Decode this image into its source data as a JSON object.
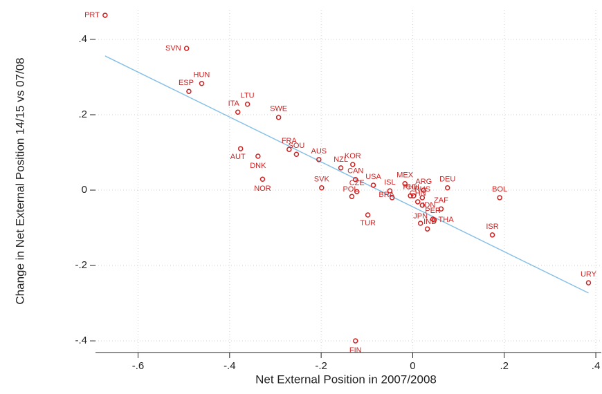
{
  "chart_data": {
    "type": "scatter",
    "x_label": "Net External Position in 2007/2008",
    "y_label": "Change in Net External Position 14/15 vs 07/08",
    "labels": [
      "PRT",
      "SVN",
      "HUN",
      "ESP",
      "LTU",
      "ITA",
      "SWE",
      "FRA",
      "SOU",
      "AUT",
      "DNK",
      "NOR",
      "AUS",
      "NZL",
      "KOR",
      "CAN",
      "SVK",
      "USA",
      "CZE",
      "POL",
      "TUR",
      "MEX",
      "FIN",
      "ISL",
      "BRA",
      "PHL",
      "ARG",
      "RUS",
      "COL",
      "CHN",
      "IDN",
      "ZAF",
      "PER",
      "THA",
      "JPN",
      "IND",
      "DEU",
      "BOL",
      "ISR",
      "URY"
    ],
    "x": [
      -0.672,
      -0.494,
      -0.461,
      -0.489,
      -0.361,
      -0.382,
      -0.293,
      -0.27,
      -0.254,
      -0.376,
      -0.338,
      -0.328,
      -0.205,
      -0.157,
      -0.131,
      -0.125,
      -0.199,
      -0.086,
      -0.122,
      -0.133,
      -0.098,
      -0.017,
      -0.125,
      -0.05,
      -0.045,
      -0.005,
      0.024,
      0.021,
      0.002,
      0.011,
      0.021,
      0.062,
      0.044,
      0.047,
      0.017,
      0.032,
      0.076,
      0.19,
      0.174,
      0.384
    ],
    "y": [
      0.464,
      0.376,
      0.283,
      0.262,
      0.228,
      0.207,
      0.193,
      0.108,
      0.095,
      0.11,
      0.09,
      0.029,
      0.081,
      0.059,
      0.068,
      0.028,
      0.006,
      0.013,
      -0.004,
      -0.017,
      -0.066,
      0.017,
      -0.4,
      -0.002,
      -0.02,
      -0.015,
      0.0,
      -0.02,
      -0.015,
      -0.031,
      -0.04,
      -0.05,
      -0.077,
      -0.079,
      -0.088,
      -0.103,
      0.006,
      -0.02,
      -0.119,
      -0.246
    ],
    "color": "#cc2222",
    "fit_line": {
      "x": [
        -0.672,
        0.384
      ],
      "y": [
        0.356,
        -0.273
      ],
      "color": "#87c0e6"
    },
    "xlim": [
      -0.693,
      0.412
    ],
    "ylim": [
      -0.431,
      0.477
    ],
    "xticks": [
      {
        "value": -0.6,
        "label": "-.6"
      },
      {
        "value": -0.4,
        "label": "-.4"
      },
      {
        "value": -0.2,
        "label": "-.2"
      },
      0,
      {
        "value": 0.2,
        "label": ".2"
      },
      {
        "value": 0.4,
        "label": ".4"
      }
    ],
    "yticks": [
      {
        "value": -0.4,
        "label": "-.4"
      },
      {
        "value": -0.2,
        "label": "-.2"
      },
      0,
      {
        "value": 0.2,
        "label": ".2"
      },
      {
        "value": 0.4,
        "label": ".4"
      }
    ],
    "grid": true
  }
}
